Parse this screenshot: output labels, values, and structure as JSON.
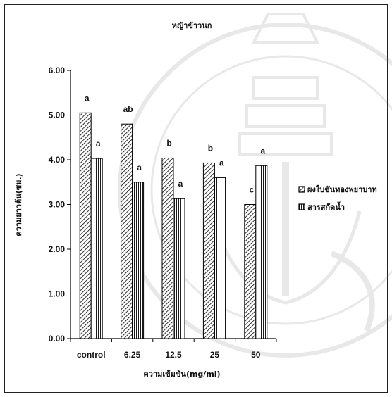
{
  "chart_data": {
    "type": "bar",
    "title": "หญ้าข้าวนก",
    "xlabel": "ความเข้มข้น(mg/ml)",
    "ylabel": "ความยาวต้น(ซม.)",
    "categories": [
      "control",
      "6.25",
      "12.5",
      "25",
      "50"
    ],
    "ylim": [
      0,
      6
    ],
    "yticks": [
      "0.00",
      "1.00",
      "2.00",
      "3.00",
      "4.00",
      "5.00",
      "6.00"
    ],
    "grid": false,
    "legend_position": "right",
    "series": [
      {
        "name": "ผงใบชันทองพยาบาท",
        "values": [
          5.05,
          4.8,
          4.04,
          3.93,
          3.0
        ],
        "labels": [
          "a",
          "ab",
          "b",
          "b",
          "c"
        ],
        "pattern": "diagonal-hatch",
        "color": "#000000"
      },
      {
        "name": "สารสกัดน้ำ",
        "values": [
          4.03,
          3.5,
          3.13,
          3.6,
          3.87
        ],
        "labels": [
          "a",
          "a",
          "a",
          "a",
          "a"
        ],
        "pattern": "vertical-stripes",
        "color": "#000000"
      }
    ]
  }
}
